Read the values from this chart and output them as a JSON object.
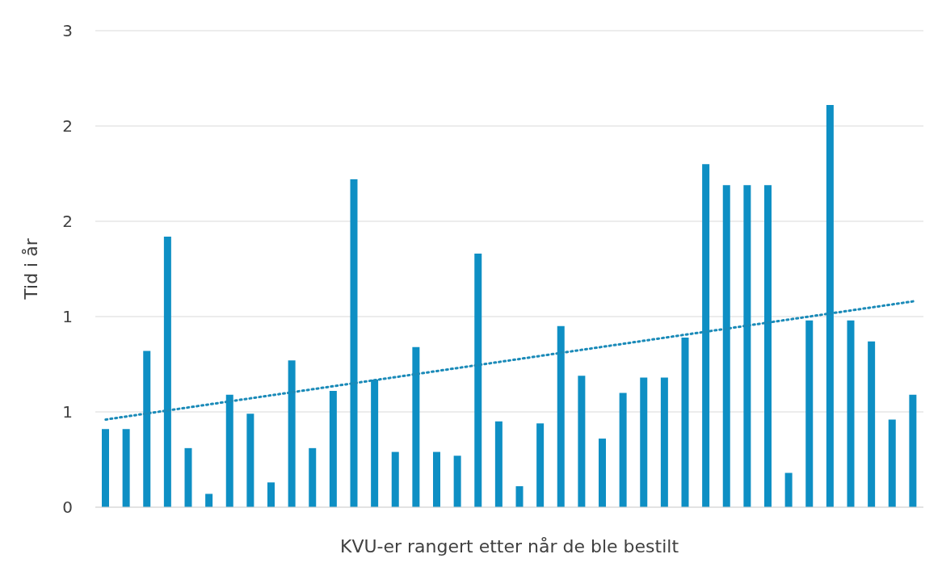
{
  "chart_data": {
    "type": "bar",
    "xlabel": "KVU-er rangert etter når de ble bestilt",
    "ylabel": "Tid i år",
    "categories": [
      null,
      null,
      null,
      null,
      null,
      null,
      null,
      null,
      null,
      null,
      null,
      null,
      null,
      null,
      null,
      null,
      null,
      null,
      null,
      null,
      null,
      null,
      null,
      null,
      null,
      null,
      null,
      null,
      null,
      null,
      null,
      null,
      null,
      null,
      null,
      null,
      null,
      null,
      null,
      null
    ],
    "series": [
      {
        "color": "#0e8fc4",
        "values": [
          0.41,
          0.41,
          0.82,
          1.42,
          0.31,
          0.07,
          0.59,
          0.49,
          0.13,
          0.77,
          0.31,
          0.61,
          1.72,
          0.67,
          0.29,
          0.84,
          0.29,
          0.27,
          1.33,
          0.45,
          0.11,
          0.44,
          0.95,
          0.69,
          0.36,
          0.6,
          0.68,
          0.68,
          0.89,
          1.8,
          1.69,
          1.69,
          1.69,
          0.18,
          0.98,
          2.11,
          0.98,
          0.87,
          0.46,
          0.59
        ]
      },
      {
        "type": "line",
        "color": "#1a8ab8",
        "line_style": "dotted",
        "marker": "none",
        "values": [
          0.46,
          null,
          null,
          null,
          null,
          null,
          null,
          null,
          null,
          null,
          null,
          null,
          null,
          null,
          null,
          null,
          null,
          null,
          null,
          null,
          null,
          null,
          null,
          null,
          null,
          null,
          null,
          null,
          null,
          null,
          null,
          null,
          null,
          null,
          null,
          null,
          null,
          null,
          null,
          1.08
        ]
      }
    ],
    "ylim": [
      0,
      2.5
    ],
    "yticks": [
      0,
      {
        "value": 0.5,
        "label": "1"
      },
      1,
      {
        "value": 1.5,
        "label": "2"
      },
      2,
      {
        "value": 2.5,
        "label": "3"
      }
    ],
    "grid": "y",
    "legend": false
  }
}
